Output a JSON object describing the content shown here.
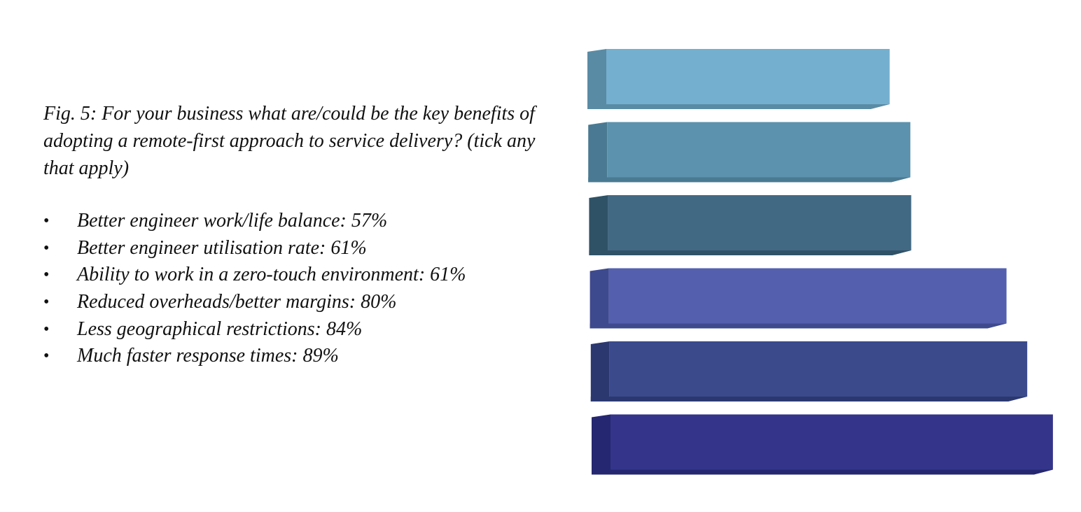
{
  "caption": "Fig. 5: For your business what are/could be the key benefits of adopting a remote-first approach to service delivery? (tick any that apply)",
  "bullets": [
    "Better engineer work/life balance: 57%",
    "Better engineer utilisation rate: 61%",
    "Ability to work in a zero-touch environment: 61%",
    "Reduced overheads/better margins: 80%",
    "Less geographical restrictions: 84%",
    "Much faster response times: 89%"
  ],
  "chart_data": {
    "type": "bar",
    "orientation": "horizontal",
    "style": "3d",
    "categories": [
      "Better engineer work/life balance",
      "Better engineer utilisation rate",
      "Ability to work in a zero-touch environment",
      "Reduced overheads/better margins",
      "Less geographical restrictions",
      "Much faster response times"
    ],
    "values": [
      57,
      61,
      61,
      80,
      84,
      89
    ],
    "unit": "%",
    "colors": [
      "#74AFCF",
      "#5C92AE",
      "#426983",
      "#5460AE",
      "#3A4A8B",
      "#33348A"
    ],
    "side_colors": [
      "#5A8BA4",
      "#4A7A93",
      "#2F5266",
      "#3E4A8E",
      "#2B3870",
      "#252770"
    ],
    "grid": false,
    "legend": "none",
    "axes_visible": false
  }
}
